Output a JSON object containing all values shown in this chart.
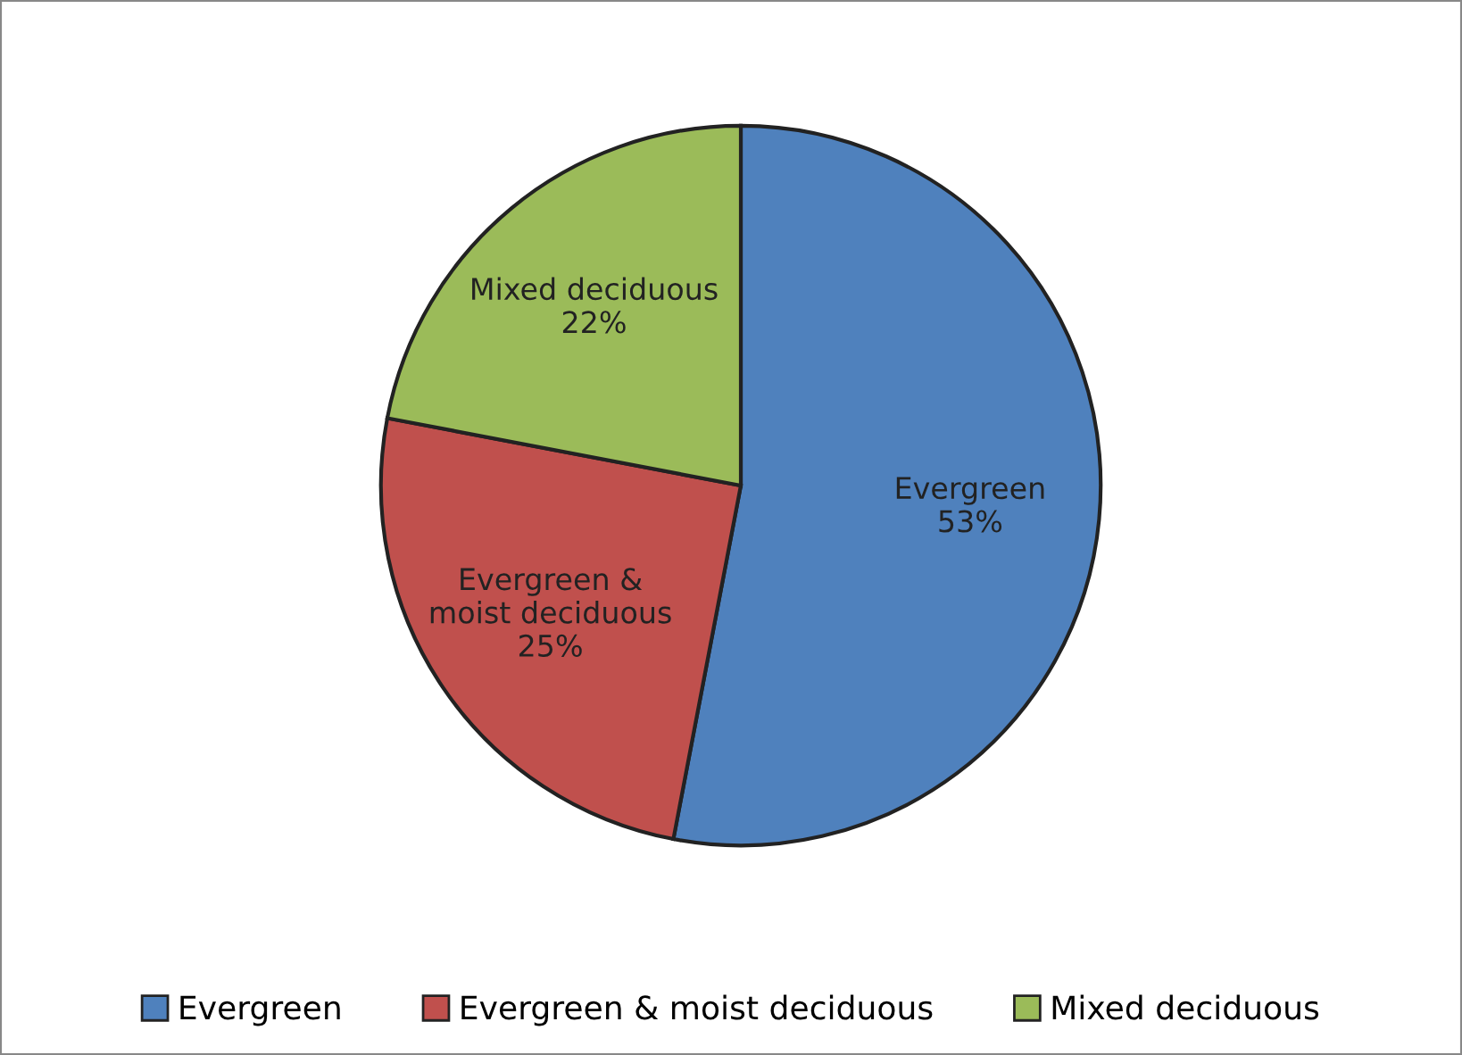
{
  "chart_data": {
    "type": "pie",
    "categories": [
      "Evergreen",
      "Evergreen & moist deciduous",
      "Mixed deciduous"
    ],
    "values": [
      53,
      25,
      22
    ],
    "colors": [
      "#4f81bd",
      "#c0504d",
      "#9bbb59"
    ],
    "value_labels": [
      "53%",
      "25%",
      "22%"
    ],
    "legend": "bottom"
  }
}
